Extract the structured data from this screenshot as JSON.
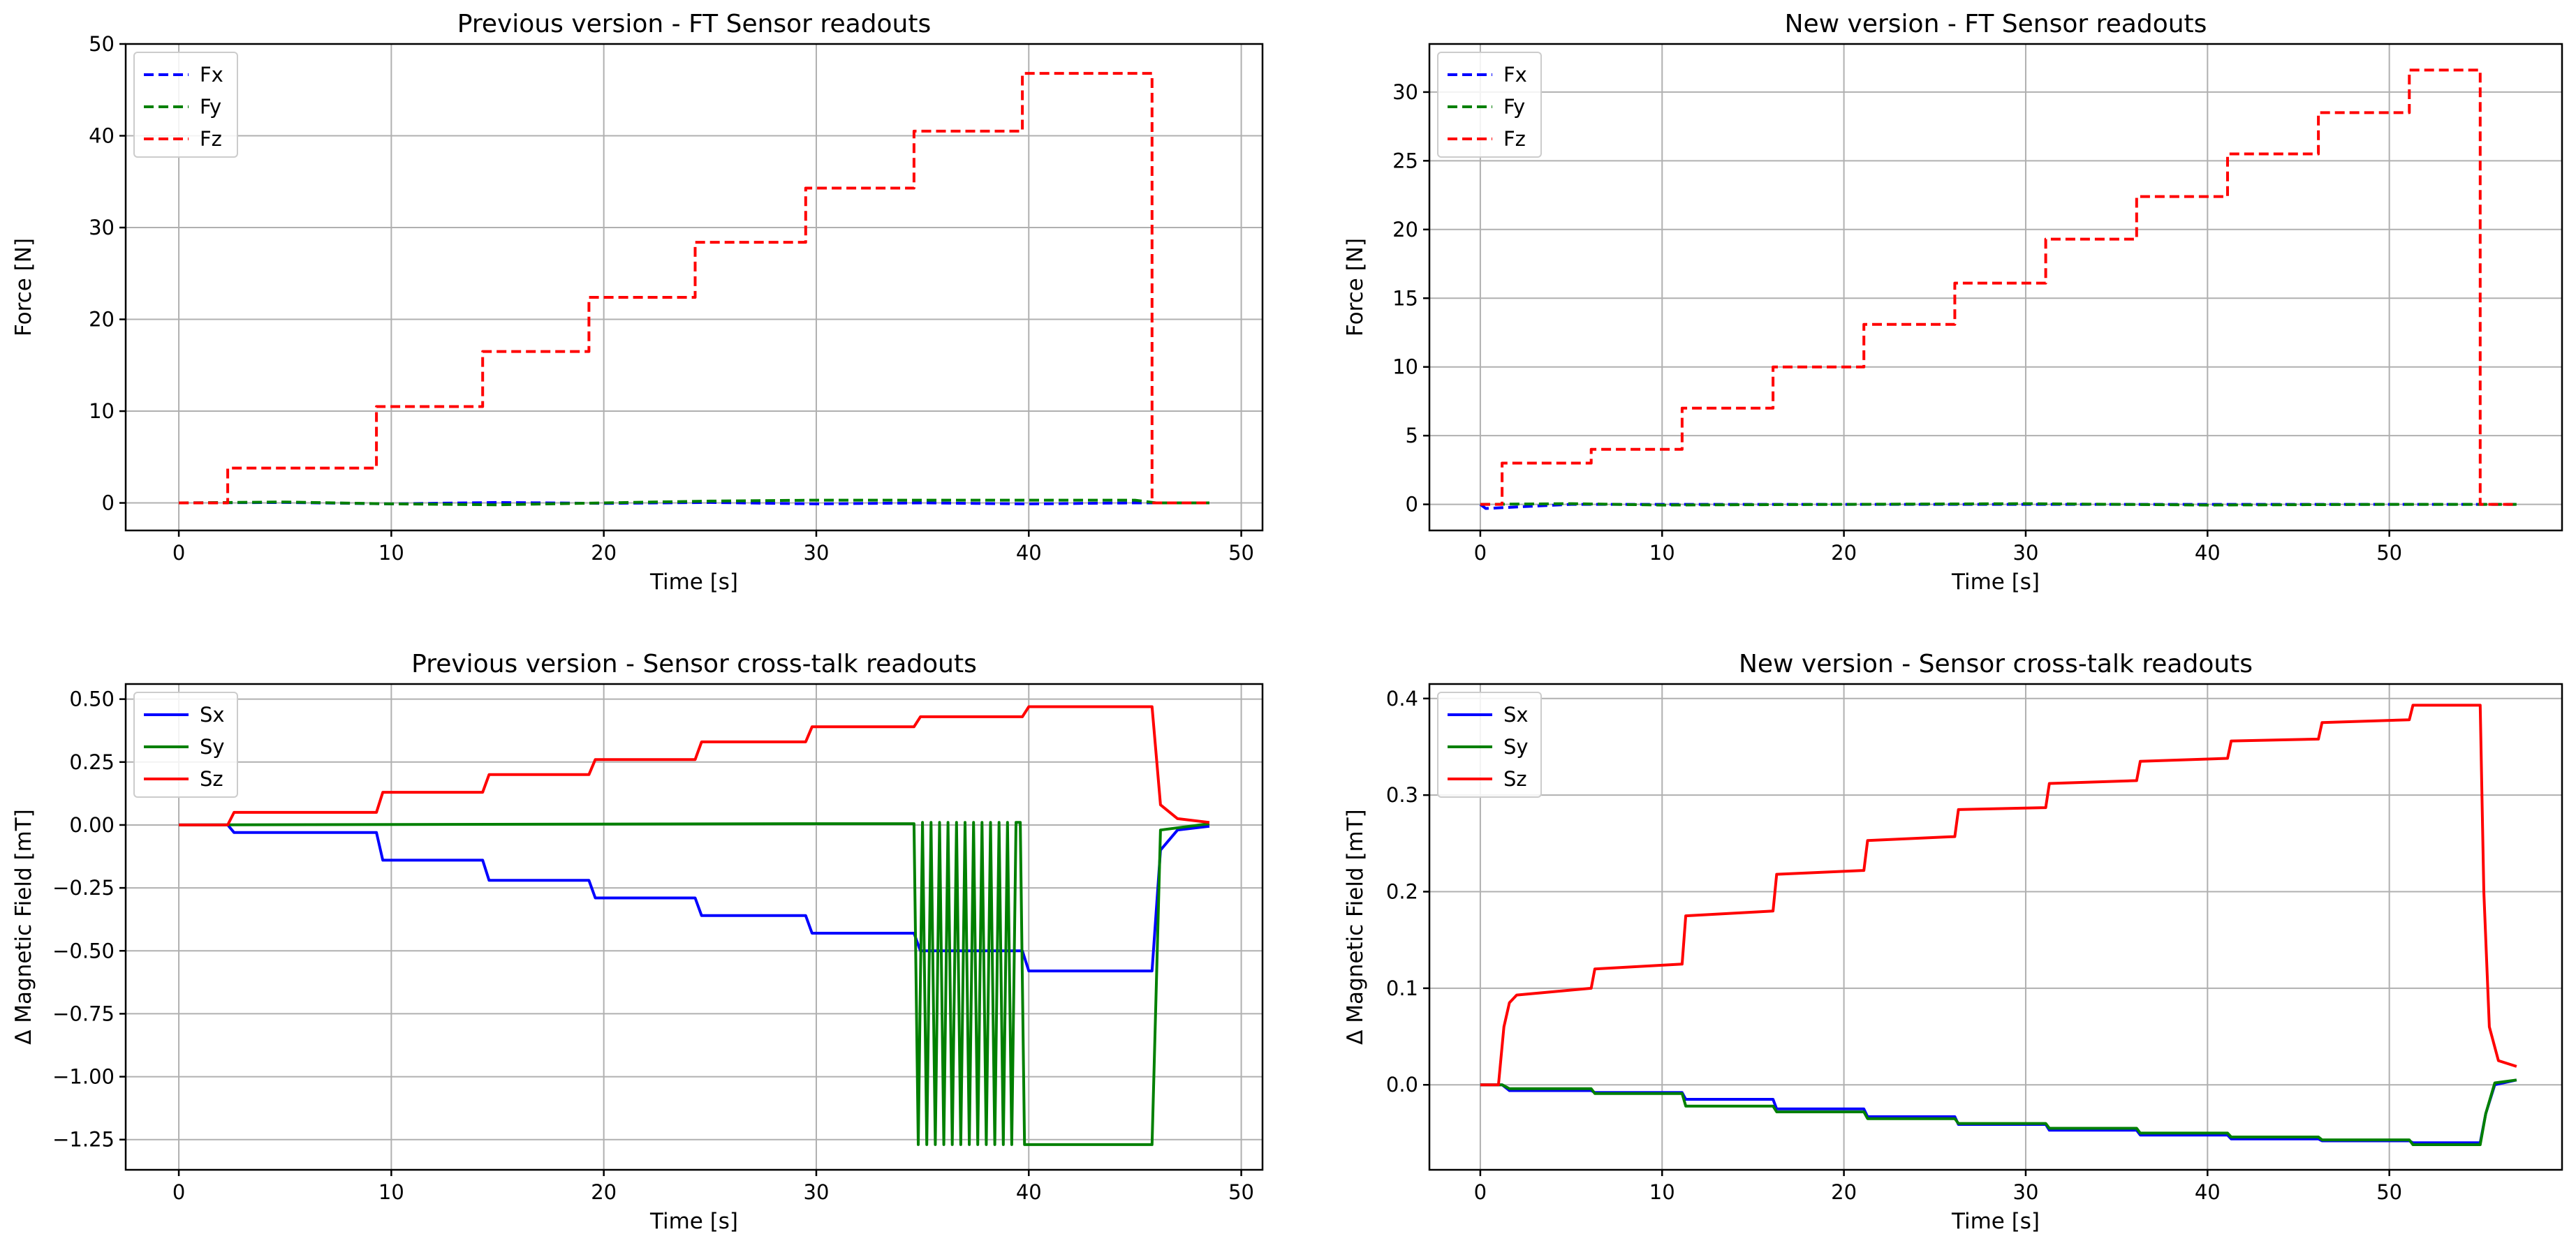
{
  "chart_data": [
    {
      "id": "prev-ft",
      "type": "line",
      "title": "Previous version - FT Sensor readouts",
      "xlabel": "Time [s]",
      "ylabel": "Force [N]",
      "xlim": [
        -2.5,
        51
      ],
      "ylim": [
        -3,
        50
      ],
      "xticks": [
        0,
        10,
        20,
        30,
        40,
        50
      ],
      "yticks": [
        0,
        10,
        20,
        30,
        40,
        50
      ],
      "tick_labels_x": [
        "0",
        "10",
        "20",
        "30",
        "40",
        "50"
      ],
      "tick_labels_y": [
        "0",
        "10",
        "20",
        "30",
        "40",
        "50"
      ],
      "grid": true,
      "legend": "top-left",
      "series": [
        {
          "name": "Fx",
          "color": "#0000ff",
          "style": "dashed",
          "x": [
            0,
            5,
            10,
            15,
            20,
            25,
            30,
            35,
            40,
            45,
            46,
            48.5
          ],
          "y": [
            0,
            0.05,
            -0.1,
            0.05,
            -0.05,
            0.05,
            -0.1,
            0,
            -0.1,
            0,
            0,
            0
          ]
        },
        {
          "name": "Fy",
          "color": "#008000",
          "style": "dashed",
          "x": [
            0,
            5,
            10,
            15,
            20,
            25,
            30,
            35,
            40,
            45,
            46,
            48.5
          ],
          "y": [
            0,
            0.1,
            -0.1,
            -0.2,
            0,
            0.2,
            0.3,
            0.3,
            0.3,
            0.3,
            0,
            0
          ]
        },
        {
          "name": "Fz",
          "color": "#ff0000",
          "style": "dashed",
          "x": [
            0,
            2.3,
            2.3,
            9.3,
            9.3,
            14.3,
            14.3,
            19.3,
            19.3,
            24.3,
            24.3,
            29.5,
            29.5,
            34.6,
            34.6,
            39.7,
            39.7,
            45.8,
            45.8,
            48.5
          ],
          "y": [
            0,
            0,
            3.8,
            3.8,
            10.5,
            10.5,
            16.5,
            16.5,
            22.4,
            22.4,
            28.4,
            28.4,
            34.3,
            34.3,
            40.5,
            40.5,
            46.8,
            46.8,
            0,
            0
          ]
        }
      ]
    },
    {
      "id": "new-ft",
      "type": "line",
      "title": "New version - FT Sensor readouts",
      "xlabel": "Time [s]",
      "ylabel": "Force [N]",
      "xlim": [
        -2.8,
        59.5
      ],
      "ylim": [
        -1.9,
        33.5
      ],
      "xticks": [
        0,
        10,
        20,
        30,
        40,
        50
      ],
      "yticks": [
        0,
        5,
        10,
        15,
        20,
        25,
        30
      ],
      "tick_labels_x": [
        "0",
        "10",
        "20",
        "30",
        "40",
        "50"
      ],
      "tick_labels_y": [
        "0",
        "5",
        "10",
        "15",
        "20",
        "25",
        "30"
      ],
      "grid": true,
      "legend": "top-left",
      "series": [
        {
          "name": "Fx",
          "color": "#0000ff",
          "style": "dashed",
          "x": [
            0,
            0.3,
            5,
            10,
            20,
            30,
            40,
            50,
            55,
            57
          ],
          "y": [
            0,
            -0.3,
            0,
            0,
            0,
            0,
            0,
            0,
            0,
            0
          ]
        },
        {
          "name": "Fy",
          "color": "#008000",
          "style": "dashed",
          "x": [
            0,
            5,
            10,
            20,
            30,
            40,
            50,
            55,
            57
          ],
          "y": [
            0,
            0.05,
            -0.05,
            0,
            0.05,
            -0.05,
            0,
            0,
            0
          ]
        },
        {
          "name": "Fz",
          "color": "#ff0000",
          "style": "dashed",
          "x": [
            0,
            1.2,
            1.2,
            6.1,
            6.1,
            11.1,
            11.1,
            16.1,
            16.1,
            21.1,
            21.1,
            26.1,
            26.1,
            31.1,
            31.1,
            36.1,
            36.1,
            41.1,
            41.1,
            46.1,
            46.1,
            51.1,
            51.1,
            55,
            55,
            57
          ],
          "y": [
            0,
            0,
            3,
            3,
            4,
            4,
            7,
            7,
            10,
            10,
            13.1,
            13.1,
            16.1,
            16.1,
            19.3,
            19.3,
            22.4,
            22.4,
            25.5,
            25.5,
            28.5,
            28.5,
            31.6,
            31.6,
            0,
            0
          ]
        }
      ]
    },
    {
      "id": "prev-xtalk",
      "type": "line",
      "title": "Previous version - Sensor cross-talk readouts",
      "xlabel": "Time [s]",
      "ylabel": "Δ Magnetic Field [mT]",
      "xlim": [
        -2.5,
        51
      ],
      "ylim": [
        -1.37,
        0.56
      ],
      "xticks": [
        0,
        10,
        20,
        30,
        40,
        50
      ],
      "yticks": [
        -1.25,
        -1.0,
        -0.75,
        -0.5,
        -0.25,
        0.0,
        0.25,
        0.5
      ],
      "tick_labels_x": [
        "0",
        "10",
        "20",
        "30",
        "40",
        "50"
      ],
      "tick_labels_y": [
        "−1.25",
        "−1.00",
        "−0.75",
        "−0.50",
        "−0.25",
        "0.00",
        "0.25",
        "0.50"
      ],
      "grid": true,
      "legend": "top-left",
      "series": [
        {
          "name": "Sx",
          "color": "#0000ff",
          "style": "solid",
          "x": [
            0,
            2.3,
            2.6,
            9.3,
            9.6,
            14.3,
            14.6,
            19.3,
            19.6,
            24.3,
            24.6,
            29.5,
            29.8,
            34.6,
            34.9,
            39.7,
            40,
            45.8,
            46.2,
            47,
            48.5
          ],
          "y": [
            0,
            0,
            -0.03,
            -0.03,
            -0.14,
            -0.14,
            -0.22,
            -0.22,
            -0.29,
            -0.29,
            -0.36,
            -0.36,
            -0.43,
            -0.43,
            -0.5,
            -0.5,
            -0.58,
            -0.58,
            -0.1,
            -0.02,
            -0.005
          ]
        },
        {
          "name": "Sy",
          "color": "#008000",
          "style": "solid",
          "x": [
            0,
            30,
            34.6,
            34.8,
            35.0,
            35.2,
            35.4,
            35.6,
            35.8,
            36.0,
            36.2,
            36.4,
            36.6,
            36.8,
            37.0,
            37.2,
            37.4,
            37.6,
            37.8,
            38.0,
            38.2,
            38.4,
            38.6,
            38.8,
            39.0,
            39.2,
            39.4,
            39.6,
            39.8,
            45.8,
            46.2,
            48.5
          ],
          "y": [
            0,
            0.005,
            0.005,
            -1.27,
            0.01,
            -1.27,
            0.01,
            -1.27,
            0.01,
            -1.27,
            0.01,
            -1.27,
            0.01,
            -1.27,
            0.01,
            -1.27,
            0.01,
            -1.27,
            0.01,
            -1.27,
            0.01,
            -1.27,
            0.01,
            -1.27,
            0.01,
            -1.27,
            0.01,
            0.01,
            -1.27,
            -1.27,
            -0.02,
            0.005
          ]
        },
        {
          "name": "Sz",
          "color": "#ff0000",
          "style": "solid",
          "x": [
            0,
            2.3,
            2.6,
            9.3,
            9.6,
            14.3,
            14.6,
            19.3,
            19.6,
            24.3,
            24.6,
            29.5,
            29.8,
            34.6,
            34.9,
            39.7,
            40,
            45.8,
            46.2,
            47,
            48.5
          ],
          "y": [
            0,
            0,
            0.05,
            0.05,
            0.13,
            0.13,
            0.2,
            0.2,
            0.26,
            0.26,
            0.33,
            0.33,
            0.39,
            0.39,
            0.43,
            0.43,
            0.47,
            0.47,
            0.08,
            0.025,
            0.01
          ]
        }
      ]
    },
    {
      "id": "new-xtalk",
      "type": "line",
      "title": "New version - Sensor cross-talk readouts",
      "xlabel": "Time [s]",
      "ylabel": "Δ Magnetic Field [mT]",
      "xlim": [
        -2.8,
        59.5
      ],
      "ylim": [
        -0.088,
        0.415
      ],
      "xticks": [
        0,
        10,
        20,
        30,
        40,
        50
      ],
      "yticks": [
        0.0,
        0.1,
        0.2,
        0.3,
        0.4
      ],
      "tick_labels_x": [
        "0",
        "10",
        "20",
        "30",
        "40",
        "50"
      ],
      "tick_labels_y": [
        "0.0",
        "0.1",
        "0.2",
        "0.3",
        "0.4"
      ],
      "grid": true,
      "legend": "top-left",
      "series": [
        {
          "name": "Sx",
          "color": "#0000ff",
          "style": "solid",
          "x": [
            0,
            1.2,
            1.6,
            6.1,
            6.3,
            11.1,
            11.3,
            16.1,
            16.3,
            21.1,
            21.3,
            26.1,
            26.3,
            31.1,
            31.3,
            36.1,
            36.3,
            41.1,
            41.3,
            46.1,
            46.3,
            51.1,
            51.3,
            55,
            55.3,
            55.8,
            57
          ],
          "y": [
            0,
            0,
            -0.006,
            -0.006,
            -0.008,
            -0.008,
            -0.015,
            -0.015,
            -0.025,
            -0.025,
            -0.033,
            -0.033,
            -0.041,
            -0.041,
            -0.047,
            -0.047,
            -0.052,
            -0.052,
            -0.056,
            -0.056,
            -0.058,
            -0.058,
            -0.06,
            -0.06,
            -0.03,
            0,
            0.005
          ]
        },
        {
          "name": "Sy",
          "color": "#008000",
          "style": "solid",
          "x": [
            0,
            1.2,
            1.6,
            6.1,
            6.3,
            11.1,
            11.3,
            16.1,
            16.3,
            21.1,
            21.3,
            26.1,
            26.3,
            31.1,
            31.3,
            36.1,
            36.3,
            41.1,
            41.3,
            46.1,
            46.3,
            51.1,
            51.3,
            55,
            55.3,
            55.8,
            57
          ],
          "y": [
            0,
            0,
            -0.004,
            -0.004,
            -0.009,
            -0.009,
            -0.022,
            -0.022,
            -0.028,
            -0.028,
            -0.035,
            -0.035,
            -0.04,
            -0.04,
            -0.045,
            -0.045,
            -0.05,
            -0.05,
            -0.054,
            -0.054,
            -0.057,
            -0.057,
            -0.062,
            -0.062,
            -0.03,
            0.002,
            0.005
          ]
        },
        {
          "name": "Sz",
          "color": "#ff0000",
          "style": "solid",
          "x": [
            0,
            1.0,
            1.3,
            1.6,
            2.0,
            6.1,
            6.3,
            11.1,
            11.3,
            16.1,
            16.3,
            21.1,
            21.3,
            26.1,
            26.3,
            31.1,
            31.3,
            36.1,
            36.3,
            41.1,
            41.3,
            46.1,
            46.3,
            51.1,
            51.3,
            55,
            55.2,
            55.5,
            56,
            57
          ],
          "y": [
            0,
            0,
            0.06,
            0.085,
            0.093,
            0.1,
            0.12,
            0.125,
            0.175,
            0.18,
            0.218,
            0.222,
            0.253,
            0.257,
            0.285,
            0.287,
            0.312,
            0.315,
            0.335,
            0.338,
            0.356,
            0.358,
            0.375,
            0.378,
            0.393,
            0.393,
            0.2,
            0.06,
            0.025,
            0.019
          ]
        }
      ]
    }
  ]
}
